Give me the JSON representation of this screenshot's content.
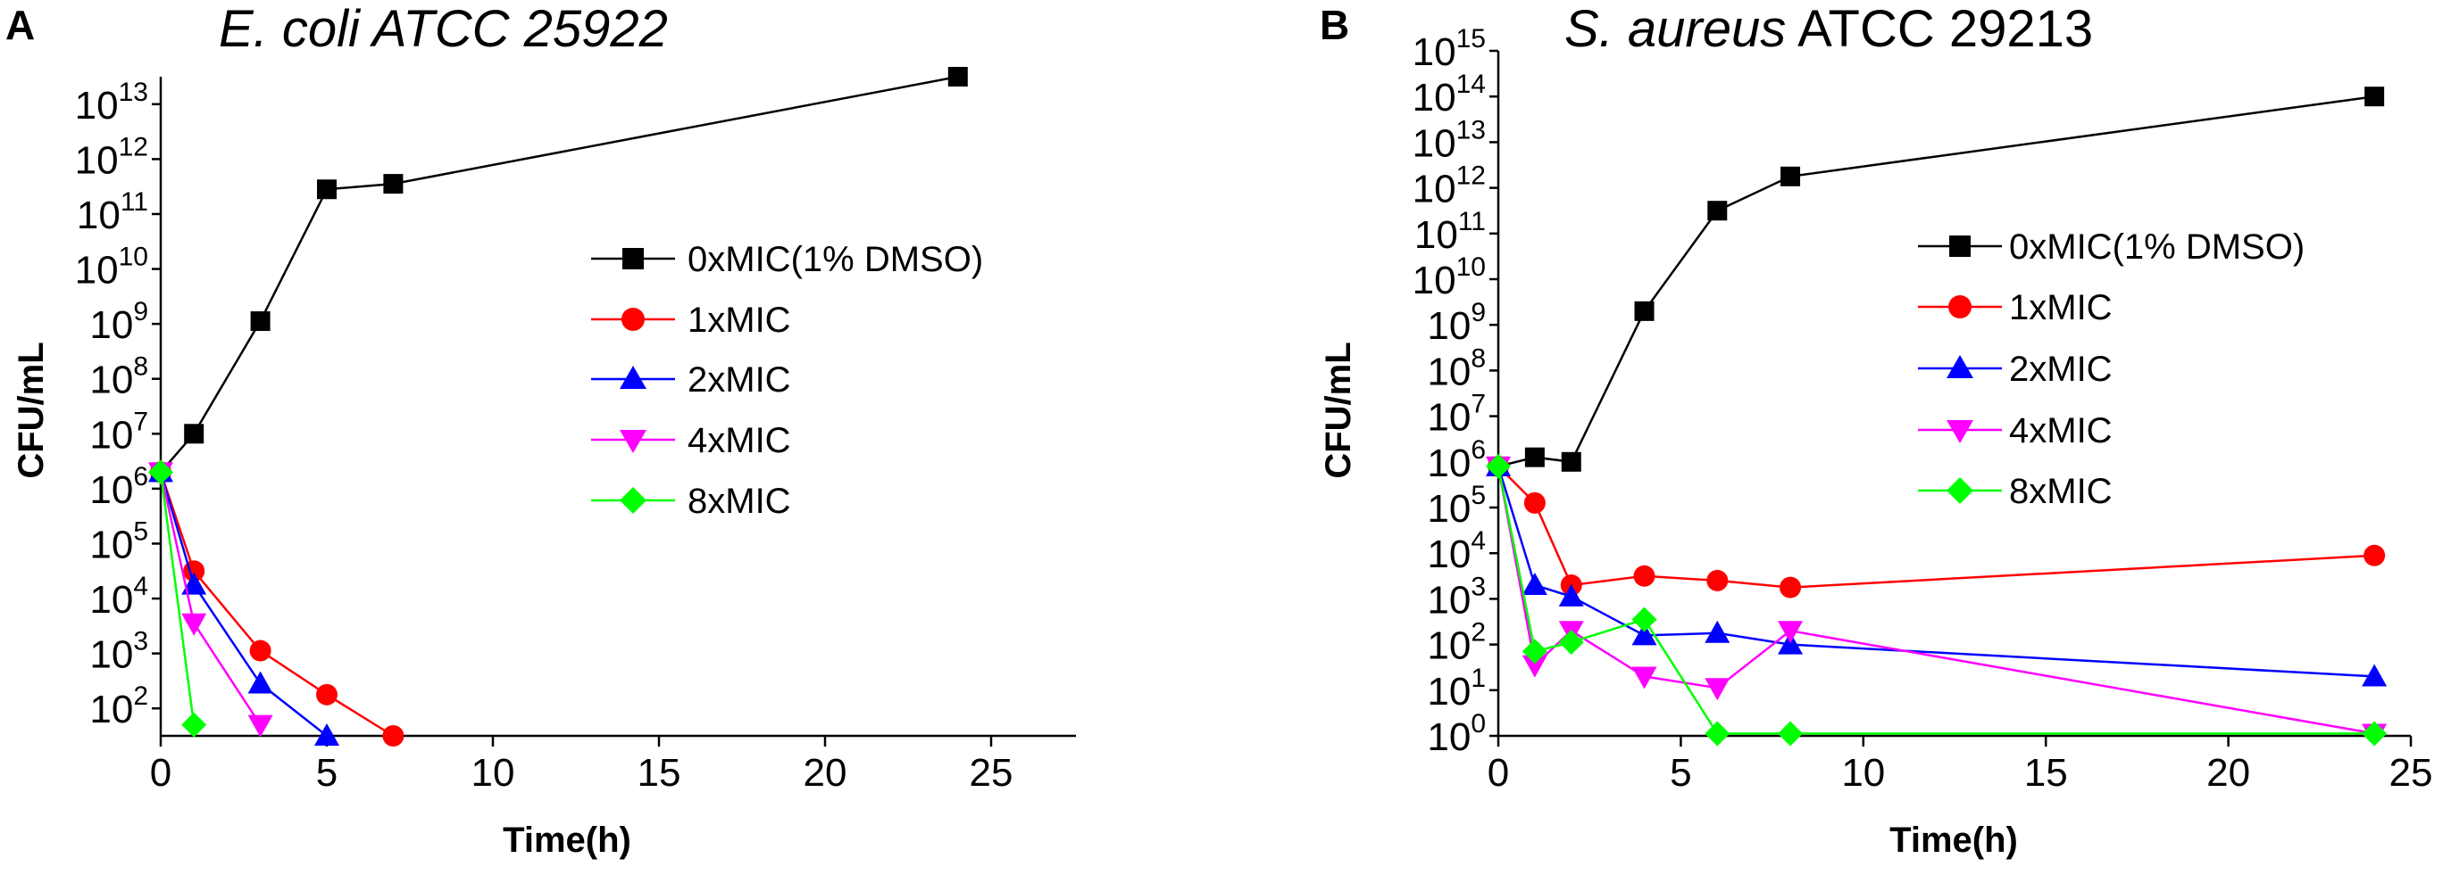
{
  "chart_data": [
    {
      "panel_label": "A",
      "type": "line",
      "title_italic": "E. coli ATCC 25922",
      "title_plain": "",
      "title": "E. coli ATCC 25922",
      "xlabel": "Time(h)",
      "ylabel": "CFU/mL",
      "xlim": [
        0,
        27.5
      ],
      "ylim_log10": [
        1.5,
        13.5
      ],
      "xticks": [
        0,
        5,
        10,
        15,
        20,
        25
      ],
      "ytick_exponents": [
        2,
        3,
        4,
        5,
        6,
        7,
        8,
        9,
        10,
        11,
        12,
        13
      ],
      "y_scale": "log10",
      "legend_position": "right-middle",
      "series": [
        {
          "name": "0xMIC(1% DMSO)",
          "color": "#000000",
          "marker": "square",
          "x": [
            0,
            1,
            3,
            5,
            7,
            24
          ],
          "log10_y": [
            6.3,
            7.0,
            9.05,
            11.45,
            11.55,
            13.5
          ]
        },
        {
          "name": "1xMIC",
          "color": "#ff0000",
          "marker": "circle",
          "x": [
            0,
            1,
            3,
            5,
            7
          ],
          "log10_y": [
            6.3,
            4.5,
            3.05,
            2.25,
            1.5
          ]
        },
        {
          "name": "2xMIC",
          "color": "#0000ff",
          "marker": "triangle-up",
          "x": [
            0,
            1,
            3,
            5
          ],
          "log10_y": [
            6.3,
            4.25,
            2.45,
            1.5
          ]
        },
        {
          "name": "4xMIC",
          "color": "#ff00ff",
          "marker": "triangle-down",
          "x": [
            0,
            1,
            3
          ],
          "log10_y": [
            6.3,
            3.55,
            1.7
          ]
        },
        {
          "name": "8xMIC",
          "color": "#00ff00",
          "marker": "diamond",
          "x": [
            0,
            1
          ],
          "log10_y": [
            6.3,
            1.7
          ]
        }
      ]
    },
    {
      "panel_label": "B",
      "type": "line",
      "title_italic": "S. aureus",
      "title_plain": " ATCC 29213",
      "title": "S. aureus ATCC 29213",
      "xlabel": "Time(h)",
      "ylabel": "CFU/mL",
      "xlim": [
        0,
        25
      ],
      "ylim_log10": [
        0,
        15
      ],
      "xticks": [
        0,
        5,
        10,
        15,
        20,
        25
      ],
      "ytick_exponents": [
        0,
        1,
        2,
        3,
        4,
        5,
        6,
        7,
        8,
        9,
        10,
        11,
        12,
        13,
        14,
        15
      ],
      "y_scale": "log10",
      "legend_position": "right-middle",
      "series": [
        {
          "name": "0xMIC(1% DMSO)",
          "color": "#000000",
          "marker": "square",
          "x": [
            0,
            1,
            2,
            4,
            6,
            8,
            24
          ],
          "log10_y": [
            5.9,
            6.1,
            6.0,
            9.3,
            11.5,
            12.25,
            14.0
          ]
        },
        {
          "name": "1xMIC",
          "color": "#ff0000",
          "marker": "circle",
          "x": [
            0,
            1,
            2,
            4,
            6,
            8,
            24
          ],
          "log10_y": [
            5.9,
            5.1,
            3.3,
            3.5,
            3.4,
            3.25,
            3.95
          ]
        },
        {
          "name": "2xMIC",
          "color": "#0000ff",
          "marker": "triangle-up",
          "x": [
            0,
            1,
            2,
            4,
            6,
            8,
            24
          ],
          "log10_y": [
            5.9,
            3.3,
            3.05,
            2.2,
            2.25,
            2.0,
            1.3
          ]
        },
        {
          "name": "4xMIC",
          "color": "#ff00ff",
          "marker": "triangle-down",
          "x": [
            0,
            1,
            2,
            4,
            6,
            8,
            24
          ],
          "log10_y": [
            5.9,
            1.55,
            2.3,
            1.3,
            1.05,
            2.3,
            0.05
          ]
        },
        {
          "name": "8xMIC",
          "color": "#00ff00",
          "marker": "diamond",
          "x": [
            0,
            1,
            2,
            4,
            6,
            8,
            24
          ],
          "log10_y": [
            5.9,
            1.85,
            2.05,
            2.55,
            0.05,
            0.05,
            0.05
          ]
        }
      ]
    }
  ]
}
